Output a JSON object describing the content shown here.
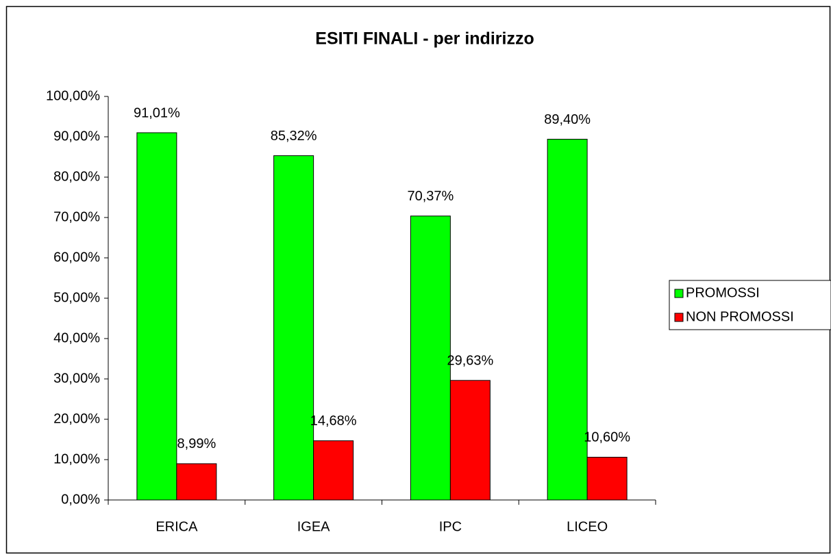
{
  "chart_data": {
    "type": "bar",
    "title": "ESITI FINALI - per indirizzo",
    "categories": [
      "ERICA",
      "IGEA",
      "IPC",
      "LICEO"
    ],
    "series": [
      {
        "name": "PROMOSSI",
        "color": "#00ff00",
        "values": [
          91.01,
          85.32,
          70.37,
          89.4
        ],
        "value_labels": [
          "91,01%",
          "85,32%",
          "70,37%",
          "89,40%"
        ]
      },
      {
        "name": "NON PROMOSSI",
        "color": "#ff0000",
        "values": [
          8.99,
          14.68,
          29.63,
          10.6
        ],
        "value_labels": [
          "8,99%",
          "14,68%",
          "29,63%",
          "10,60%"
        ]
      }
    ],
    "ylim": [
      0,
      100
    ],
    "yticks": [
      {
        "value": 0,
        "label": "0,00%"
      },
      {
        "value": 10,
        "label": "10,00%"
      },
      {
        "value": 20,
        "label": "20,00%"
      },
      {
        "value": 30,
        "label": "30,00%"
      },
      {
        "value": 40,
        "label": "40,00%"
      },
      {
        "value": 50,
        "label": "50,00%"
      },
      {
        "value": 60,
        "label": "60,00%"
      },
      {
        "value": 70,
        "label": "70,00%"
      },
      {
        "value": 80,
        "label": "80,00%"
      },
      {
        "value": 90,
        "label": "90,00%"
      },
      {
        "value": 100,
        "label": "100,00%"
      }
    ],
    "grid": false,
    "legend": "right"
  }
}
